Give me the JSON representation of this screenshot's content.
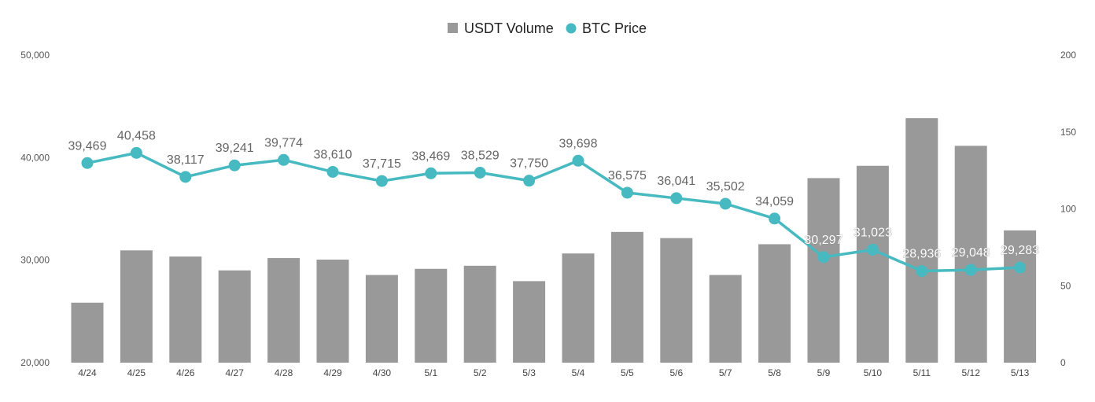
{
  "chart_data": {
    "type": "bar+line",
    "categories": [
      "4/24",
      "4/25",
      "4/26",
      "4/27",
      "4/28",
      "4/29",
      "4/30",
      "5/1",
      "5/2",
      "5/3",
      "5/4",
      "5/5",
      "5/6",
      "5/7",
      "5/8",
      "5/9",
      "5/10",
      "5/11",
      "5/12",
      "5/13"
    ],
    "legend": [
      {
        "label": "USDT Volume",
        "marker": "square",
        "color": "#999999"
      },
      {
        "label": "BTC Price",
        "marker": "circle",
        "color": "#47BAC1"
      }
    ],
    "legend_position": "top-center",
    "series": [
      {
        "name": "USDT Volume",
        "type": "bar",
        "axis": "right",
        "color": "#999999",
        "values": [
          39,
          73,
          69,
          60,
          68,
          67,
          57,
          61,
          63,
          53,
          71,
          85,
          81,
          57,
          77,
          120,
          128,
          159,
          141,
          86
        ]
      },
      {
        "name": "BTC Price",
        "type": "line",
        "axis": "left",
        "color": "#47BAC1",
        "values": [
          39469,
          40458,
          38117,
          39241,
          39774,
          38610,
          37715,
          38469,
          38529,
          37750,
          39698,
          36575,
          36041,
          35502,
          34059,
          30297,
          31023,
          28936,
          29048,
          29283
        ],
        "labels": [
          "39,469",
          "40,458",
          "38,117",
          "39,241",
          "39,774",
          "38,610",
          "37,715",
          "38,469",
          "38,529",
          "37,750",
          "39,698",
          "36,575",
          "36,041",
          "35,502",
          "34,059",
          "30,297",
          "31,023",
          "28,936",
          "29,048",
          "29,283"
        ]
      }
    ],
    "y_left": {
      "min": 20000,
      "max": 50000,
      "ticks": [
        20000,
        30000,
        40000,
        50000
      ],
      "tick_labels": [
        "20,000",
        "30,000",
        "40,000",
        "50,000"
      ]
    },
    "y_right": {
      "min": 0,
      "max": 200,
      "ticks": [
        0,
        50,
        100,
        150,
        200
      ],
      "tick_labels": [
        "0",
        "50",
        "100",
        "150",
        "200"
      ]
    },
    "grid": false,
    "title": "",
    "xlabel": "",
    "ylabel": ""
  }
}
